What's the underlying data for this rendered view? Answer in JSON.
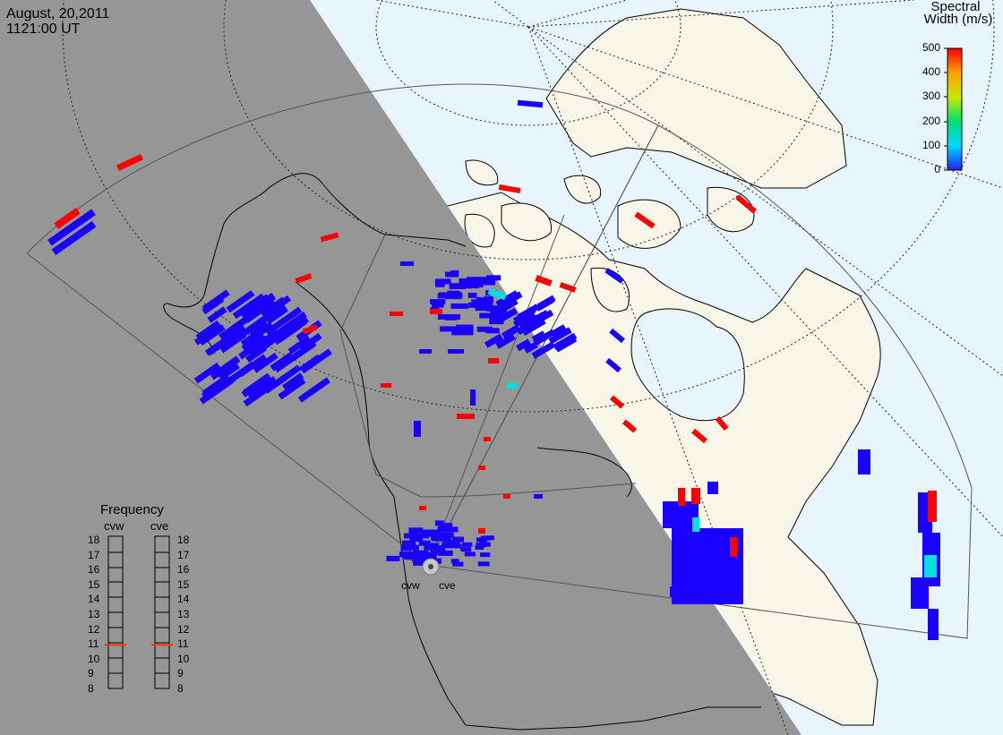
{
  "header": {
    "date": "August, 20,2011",
    "time": "1121:00 UT"
  },
  "colorbar": {
    "title_line1": "Spectral",
    "title_line2": "Width (m/s)",
    "ticks": [
      "500",
      "400",
      "300",
      "200",
      "100",
      "0"
    ]
  },
  "frequency_panel": {
    "title": "Frequency",
    "radars": [
      "cvw",
      "cve"
    ],
    "ticks": [
      "18",
      "17",
      "16",
      "15",
      "14",
      "13",
      "12",
      "11",
      "10",
      "9",
      "8"
    ],
    "marker_value": 11
  },
  "sites": {
    "west": "cvw",
    "east": "cve"
  },
  "colors": {
    "night": "#969696",
    "ocean": "#e8f5fc",
    "land": "#f8f6e8",
    "echo_low": "#1a00ff",
    "echo_mid": "#00e0e0",
    "echo_high": "#ff0000",
    "marker": "#ff3300"
  }
}
